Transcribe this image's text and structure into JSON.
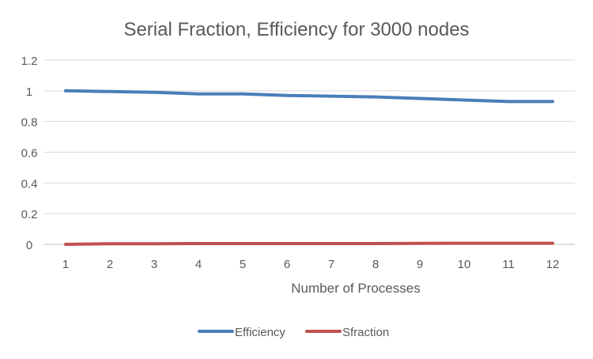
{
  "chart_data": {
    "type": "line",
    "title": "Serial Fraction, Efficiency for 3000 nodes",
    "xlabel": "Number of Processes",
    "ylabel": "",
    "categories": [
      "1",
      "2",
      "3",
      "4",
      "5",
      "6",
      "7",
      "8",
      "9",
      "10",
      "11",
      "12"
    ],
    "ylim": [
      0,
      1.2
    ],
    "yticks": [
      "0",
      "0.2",
      "0.4",
      "0.6",
      "0.8",
      "1",
      "1.2"
    ],
    "grid": true,
    "legend_position": "bottom",
    "series": [
      {
        "name": "Efficiency",
        "color": "#4a7ebb",
        "values": [
          1.0,
          0.995,
          0.99,
          0.98,
          0.98,
          0.97,
          0.965,
          0.96,
          0.95,
          0.94,
          0.93,
          0.93
        ]
      },
      {
        "name": "Sfraction",
        "color": "#c0504d",
        "values": [
          0.0,
          0.004,
          0.004,
          0.005,
          0.005,
          0.005,
          0.005,
          0.005,
          0.006,
          0.007,
          0.007,
          0.007
        ]
      }
    ]
  }
}
